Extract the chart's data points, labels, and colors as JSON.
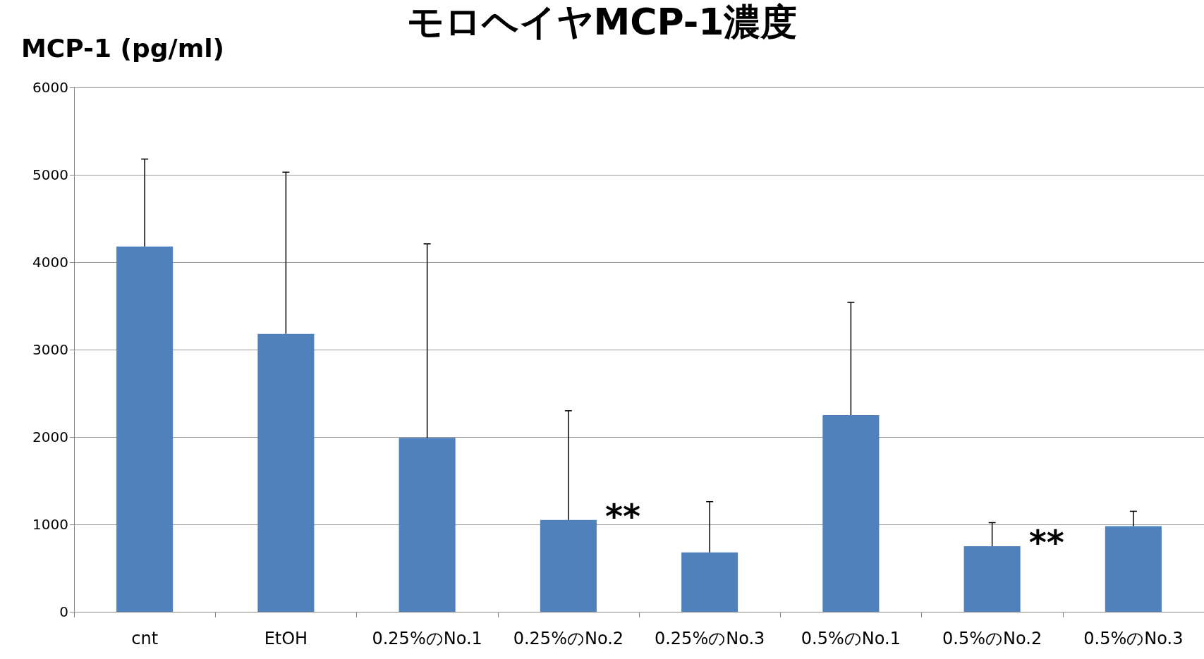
{
  "chart_data": {
    "type": "bar",
    "title": "モロヘイヤMCP-1濃度",
    "ylabel": "MCP-1 (pg/ml)",
    "categories": [
      "cnt",
      "EtOH",
      "0.25%のNo.1",
      "0.25%のNo.2",
      "0.25%のNo.3",
      "0.5%のNo.1",
      "0.5%のNo.2",
      "0.5%のNo.3"
    ],
    "values": [
      4180,
      3180,
      1990,
      1050,
      680,
      2250,
      750,
      980
    ],
    "errors": [
      [
        4180,
        5180
      ],
      [
        3180,
        5030
      ],
      [
        1990,
        4210
      ],
      [
        1050,
        2300
      ],
      [
        680,
        1260
      ],
      [
        2250,
        3540
      ],
      [
        750,
        1020
      ],
      [
        980,
        1150
      ]
    ],
    "color": "#4f81bd",
    "ylim": [
      0,
      6000
    ],
    "yticks": [
      0,
      1000,
      2000,
      3000,
      4000,
      5000,
      6000
    ],
    "grid": "y",
    "annotations": [
      {
        "text": "**",
        "x": "0.25%のNo.2",
        "y": 1050
      },
      {
        "text": "**",
        "x": "0.5%のNo.2",
        "y": 750
      }
    ]
  }
}
